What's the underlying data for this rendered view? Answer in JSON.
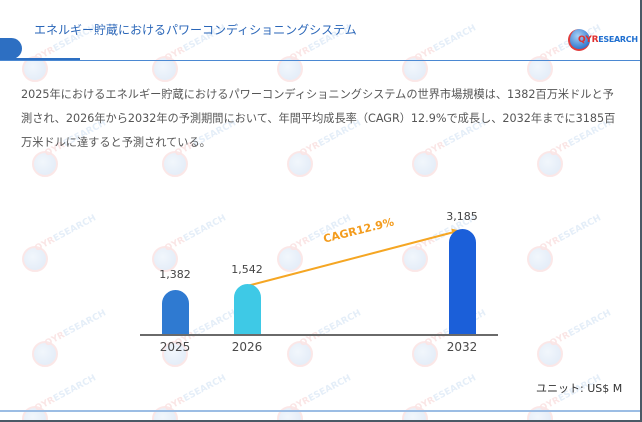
{
  "header": {
    "title": "エネルギー貯蔵におけるパワーコンディショニングシステム",
    "logo": {
      "prefix": "QYR",
      "suffix": "ESEARCH"
    }
  },
  "description": "2025年におけるエネルギー貯蔵におけるパワーコンディショニングシステムの世界市場規模は、1382百万米ドルと予測され、2026年から2032年の予測期間において、年間平均成長率（CAGR）12.9%で成長し、2032年までに3185百万米ドルに達すると予測されている。",
  "watermark": {
    "prefix": "QYR",
    "suffix": "ESEARCH"
  },
  "colors": {
    "title": "#2a66b8",
    "accent": "#2d6fc2",
    "bar_2025": "#2f7ad1",
    "bar_2026": "#3ec9e6",
    "bar_2032": "#1b5fd9",
    "cagr_arrow": "#f5a623",
    "footer_line": "#9cbde4"
  },
  "chart_data": {
    "type": "bar",
    "title": "エネルギー貯蔵におけるパワーコンディショニングシステム",
    "categories": [
      "2025",
      "2026",
      "2032"
    ],
    "values": [
      1382,
      1542,
      3185
    ],
    "value_labels": [
      "1,382",
      "1,542",
      "3,185"
    ],
    "xlabel": "",
    "ylabel": "",
    "unit": "US$ M",
    "annotations": [
      {
        "type": "arrow",
        "from": "2026",
        "to": "2032",
        "text": "CAGR12.9%"
      }
    ],
    "grid": false,
    "legend": "none"
  },
  "chart": {
    "bars": [
      {
        "year": "2025",
        "label": "1,382"
      },
      {
        "year": "2026",
        "label": "1,542"
      },
      {
        "year": "2032",
        "label": "3,185"
      }
    ],
    "cagr_label": "CAGR12.9%",
    "unit_label": "ユニット: US$ M"
  }
}
